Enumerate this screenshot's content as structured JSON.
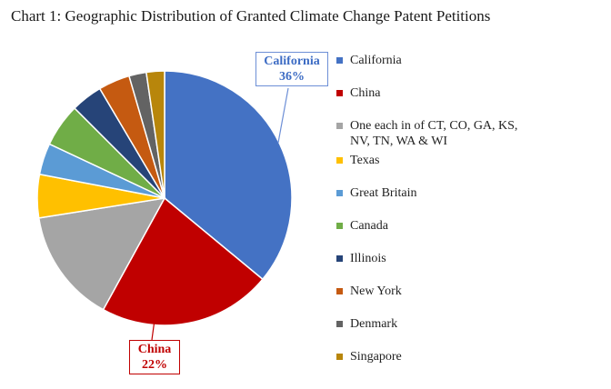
{
  "chart_data": {
    "type": "pie",
    "title": "Chart 1: Geographic Distribution of Granted Climate Change Patent Petitions",
    "slices": [
      {
        "label": "California",
        "value": 36,
        "color": "#4472c4"
      },
      {
        "label": "China",
        "value": 22,
        "color": "#c00000"
      },
      {
        "label": "One each in of CT, CO, GA, KS, NV, TN, WA & WI",
        "value": 14.5,
        "color": "#a5a5a5"
      },
      {
        "label": "Texas",
        "value": 5.5,
        "color": "#ffc000"
      },
      {
        "label": "Great Britain",
        "value": 4,
        "color": "#5b9bd5"
      },
      {
        "label": "Canada",
        "value": 5.5,
        "color": "#70ad47"
      },
      {
        "label": "Illinois",
        "value": 4,
        "color": "#264478"
      },
      {
        "label": "New York",
        "value": 4,
        "color": "#c55a11"
      },
      {
        "label": "Denmark",
        "value": 2.2,
        "color": "#636363"
      },
      {
        "label": "Singapore",
        "value": 2.3,
        "color": "#b8860b"
      }
    ],
    "legend_position": "right",
    "callouts": [
      {
        "label": "California",
        "value_text": "36%"
      },
      {
        "label": "China",
        "value_text": "22%"
      }
    ]
  }
}
